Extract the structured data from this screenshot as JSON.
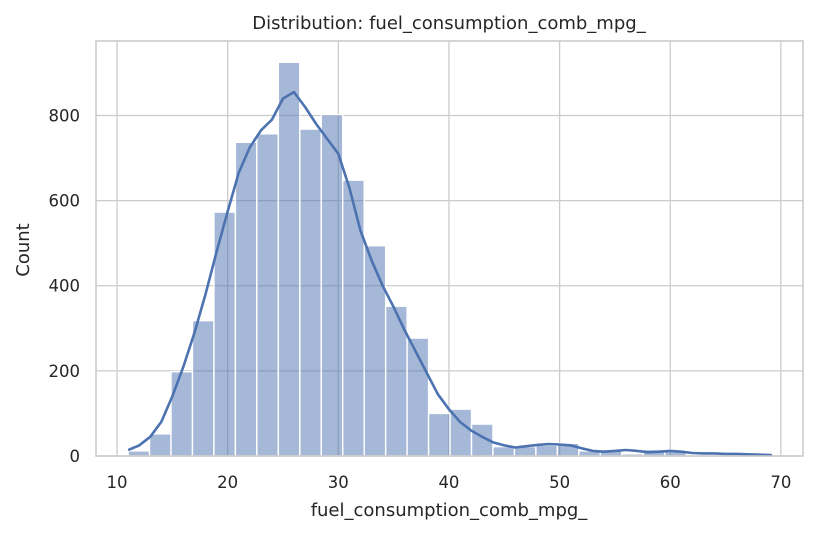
{
  "chart_data": {
    "type": "histogram",
    "title": "Distribution: fuel_consumption_comb_mpg_",
    "xlabel": "fuel_consumption_comb_mpg_",
    "ylabel": "Count",
    "xlim": [
      8.1,
      72.0
    ],
    "ylim": [
      0,
      975
    ],
    "xticks": [
      10,
      20,
      30,
      40,
      50,
      60,
      70
    ],
    "yticks": [
      0,
      200,
      400,
      600,
      800
    ],
    "grid": true,
    "bar_color": "#4c72b0",
    "line_color": "#4c72b0",
    "bins": {
      "start": 11.0,
      "width": 1.94,
      "counts": [
        12,
        52,
        198,
        318,
        573,
        737,
        757,
        925,
        768,
        802,
        648,
        494,
        352,
        277,
        100,
        110,
        75,
        22,
        22,
        25,
        30,
        12,
        15,
        5,
        15,
        10,
        3,
        2,
        2,
        0
      ]
    },
    "kde": {
      "x": [
        11.1,
        12,
        13,
        14,
        15,
        16,
        17,
        18,
        19,
        20,
        21,
        22,
        23,
        24,
        25,
        26,
        27,
        28,
        29,
        30,
        31,
        32,
        33,
        34,
        35,
        36,
        37,
        38,
        39,
        40,
        41,
        42,
        43,
        44,
        45,
        46,
        47,
        48,
        49,
        50,
        51,
        52,
        53,
        54,
        55,
        56,
        57,
        58,
        59,
        60,
        61,
        62,
        63,
        64,
        65,
        66,
        67,
        68,
        69.1
      ],
      "y": [
        15,
        25,
        45,
        80,
        140,
        210,
        290,
        380,
        480,
        575,
        665,
        725,
        765,
        790,
        840,
        855,
        820,
        780,
        745,
        710,
        630,
        530,
        460,
        400,
        350,
        295,
        245,
        195,
        145,
        110,
        80,
        60,
        45,
        32,
        25,
        20,
        23,
        26,
        28,
        27,
        25,
        18,
        12,
        10,
        12,
        14,
        12,
        9,
        10,
        12,
        10,
        7,
        6,
        6,
        5,
        5,
        4,
        3,
        2
      ]
    }
  }
}
